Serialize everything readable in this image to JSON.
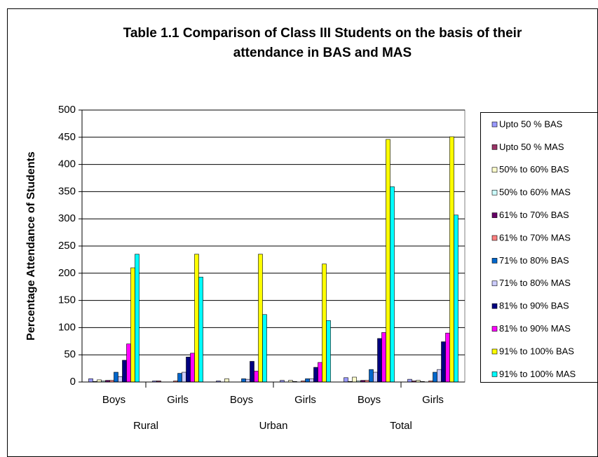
{
  "chart_data": {
    "type": "bar",
    "title": [
      "Table 1.1 Comparison of Class III Students on the basis of their",
      "attendance in BAS and MAS"
    ],
    "y_label": "Percentage Attendance of Students",
    "categories": [
      "Boys",
      "Girls",
      "Boys",
      "Girls",
      "Boys",
      "Girls"
    ],
    "category_groups": [
      "Rural",
      "Urban",
      "Total"
    ],
    "ylim": [
      0,
      500
    ],
    "yticks": [
      0,
      50,
      100,
      150,
      200,
      250,
      300,
      350,
      400,
      450,
      500
    ],
    "grid": true,
    "legend": "right",
    "series": [
      {
        "name": "Upto 50 % BAS",
        "color": "#9999ff",
        "values": [
          6,
          2,
          2,
          3,
          8,
          5
        ]
      },
      {
        "name": "Upto 50 % MAS",
        "color": "#993366",
        "values": [
          1,
          2,
          0,
          0,
          1,
          2
        ]
      },
      {
        "name": "50% to 60% BAS",
        "color": "#ffffcc",
        "values": [
          4,
          0,
          6,
          3,
          9,
          3
        ]
      },
      {
        "name": "50% to 60% MAS",
        "color": "#ccffff",
        "values": [
          2,
          0,
          0,
          1,
          2,
          1
        ]
      },
      {
        "name": "61% to 70% BAS",
        "color": "#660066",
        "values": [
          3,
          0,
          0,
          0,
          3,
          0
        ]
      },
      {
        "name": "61% to 70% MAS",
        "color": "#ff8080",
        "values": [
          3,
          2,
          0,
          2,
          3,
          2
        ]
      },
      {
        "name": "71% to 80% BAS",
        "color": "#0066cc",
        "values": [
          18,
          16,
          6,
          6,
          23,
          18
        ]
      },
      {
        "name": "71% to 80% MAS",
        "color": "#ccccff",
        "values": [
          10,
          18,
          5,
          6,
          18,
          23
        ]
      },
      {
        "name": "81% to 90% BAS",
        "color": "#000080",
        "values": [
          40,
          46,
          38,
          27,
          80,
          74
        ]
      },
      {
        "name": "81% to 90% MAS",
        "color": "#ff00ff",
        "values": [
          70,
          53,
          20,
          36,
          91,
          90
        ]
      },
      {
        "name": "91% to 100% BAS",
        "color": "#ffff00",
        "values": [
          210,
          235,
          235,
          217,
          446,
          451
        ]
      },
      {
        "name": "91% to 100% MAS",
        "color": "#00ffff",
        "values": [
          235,
          193,
          124,
          113,
          359,
          307
        ]
      }
    ]
  }
}
